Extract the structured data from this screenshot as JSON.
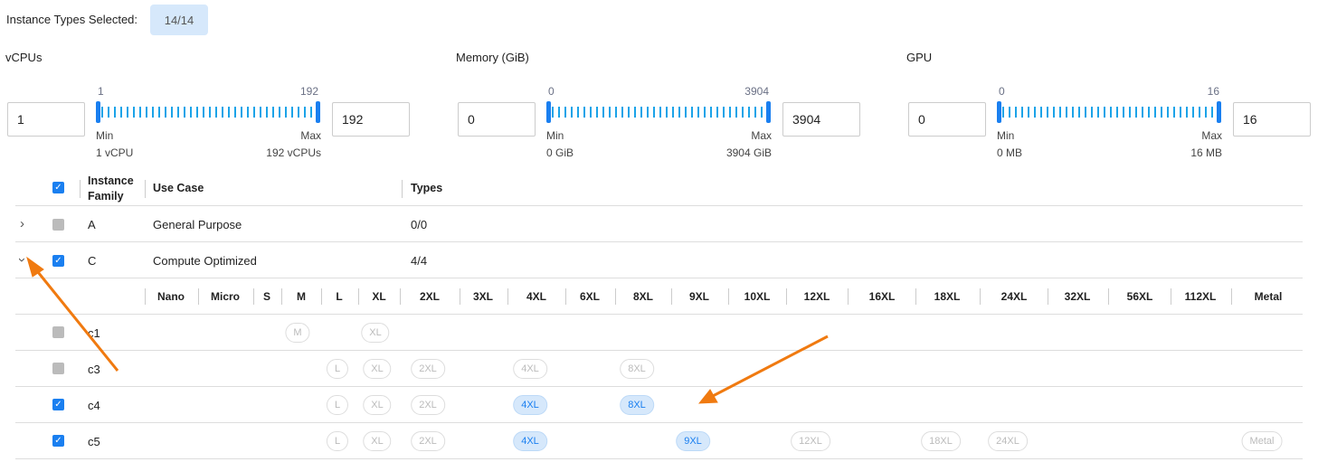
{
  "header": {
    "label": "Instance Types Selected:",
    "count": "14/14"
  },
  "filters": [
    {
      "title": "vCPUs",
      "min_value": "1",
      "max_value": "192",
      "range_min": "1",
      "range_max": "192",
      "min_label": "Min",
      "max_label": "Max",
      "min_desc": "1 vCPU",
      "max_desc": "192 vCPUs"
    },
    {
      "title": "Memory (GiB)",
      "min_value": "0",
      "max_value": "3904",
      "range_min": "0",
      "range_max": "3904",
      "min_label": "Min",
      "max_label": "Max",
      "min_desc": "0 GiB",
      "max_desc": "3904 GiB"
    },
    {
      "title": "GPU",
      "min_value": "0",
      "max_value": "16",
      "range_min": "0",
      "range_max": "16",
      "min_label": "Min",
      "max_label": "Max",
      "min_desc": "0 MB",
      "max_desc": "16 MB"
    }
  ],
  "table": {
    "headers": {
      "family": "Instance Family",
      "use_case": "Use Case",
      "types": "Types"
    },
    "families": [
      {
        "name": "A",
        "use_case": "General Purpose",
        "types": "0/0",
        "expanded": false,
        "checked": "partial"
      },
      {
        "name": "C",
        "use_case": "Compute Optimized",
        "types": "4/4",
        "expanded": true,
        "checked": true
      }
    ],
    "sizes": [
      "Nano",
      "Micro",
      "S",
      "M",
      "L",
      "XL",
      "2XL",
      "3XL",
      "4XL",
      "6XL",
      "8XL",
      "9XL",
      "10XL",
      "12XL",
      "16XL",
      "18XL",
      "24XL",
      "32XL",
      "56XL",
      "112XL",
      "Metal"
    ],
    "sub_rows": [
      {
        "name": "c1",
        "checked": false,
        "available": [
          "M",
          "XL"
        ],
        "selected": []
      },
      {
        "name": "c3",
        "checked": false,
        "available": [
          "L",
          "XL",
          "2XL",
          "4XL",
          "8XL"
        ],
        "selected": []
      },
      {
        "name": "c4",
        "checked": true,
        "available": [
          "L",
          "XL",
          "2XL",
          "4XL",
          "8XL"
        ],
        "selected": [
          "4XL",
          "8XL"
        ]
      },
      {
        "name": "c5",
        "checked": true,
        "available": [
          "L",
          "XL",
          "2XL",
          "4XL",
          "9XL",
          "12XL",
          "18XL",
          "24XL",
          "Metal"
        ],
        "selected": [
          "4XL",
          "9XL"
        ]
      }
    ]
  },
  "colors": {
    "accent": "#1a7ff0",
    "selected_chip": "#d6e8fb",
    "annotation_arrow": "#f07a10"
  }
}
